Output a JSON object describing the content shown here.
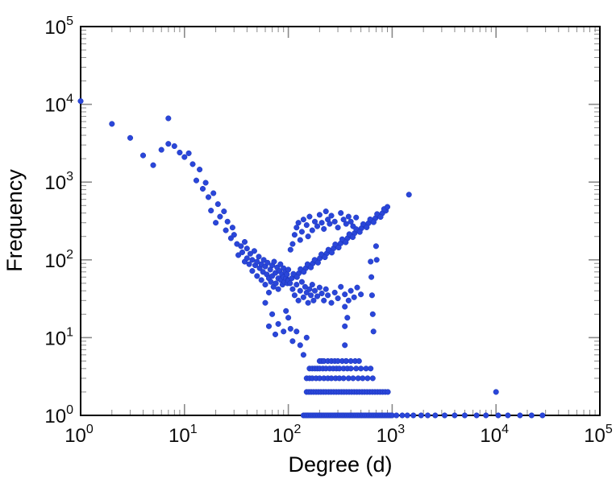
{
  "figure": {
    "background": "#ffffff"
  },
  "chart_data": {
    "type": "scatter",
    "title": "",
    "xlabel": "Degree (d)",
    "ylabel": "Frequency",
    "x_scale": "log",
    "y_scale": "log",
    "xlim": [
      1,
      100000
    ],
    "ylim": [
      1,
      100000
    ],
    "x_tick_exponents": [
      0,
      1,
      2,
      3,
      4,
      5
    ],
    "y_tick_exponents": [
      0,
      1,
      2,
      3,
      4,
      5
    ],
    "tick_base": "10",
    "grid": false,
    "legend": "none",
    "marker_color": "#2a46d9",
    "marker_edge_color": "#1b35b8",
    "tick_color": "#8a8a8a",
    "points": [
      [
        1,
        11000
      ],
      [
        2,
        5600
      ],
      [
        3,
        3700
      ],
      [
        4,
        2200
      ],
      [
        5,
        1650
      ],
      [
        6,
        2600
      ],
      [
        7,
        6600
      ],
      [
        7,
        3100
      ],
      [
        8,
        2900
      ],
      [
        9,
        2400
      ],
      [
        10,
        2100
      ],
      [
        11,
        2350
      ],
      [
        12,
        1700
      ],
      [
        13,
        1050
      ],
      [
        14,
        1450
      ],
      [
        15,
        820
      ],
      [
        16,
        980
      ],
      [
        17,
        640
      ],
      [
        18,
        430
      ],
      [
        19,
        720
      ],
      [
        20,
        300
      ],
      [
        21,
        520
      ],
      [
        22,
        360
      ],
      [
        24,
        420
      ],
      [
        25,
        240
      ],
      [
        26,
        310
      ],
      [
        28,
        190
      ],
      [
        29,
        260
      ],
      [
        30,
        210
      ],
      [
        32,
        160
      ],
      [
        33,
        115
      ],
      [
        35,
        150
      ],
      [
        36,
        125
      ],
      [
        38,
        95
      ],
      [
        38,
        170
      ],
      [
        40,
        140
      ],
      [
        40,
        105
      ],
      [
        42,
        88
      ],
      [
        43,
        120
      ],
      [
        45,
        100
      ],
      [
        45,
        72
      ],
      [
        47,
        130
      ],
      [
        48,
        85
      ],
      [
        50,
        95
      ],
      [
        50,
        62
      ],
      [
        52,
        110
      ],
      [
        53,
        78
      ],
      [
        55,
        88
      ],
      [
        55,
        55
      ],
      [
        57,
        70
      ],
      [
        58,
        100
      ],
      [
        60,
        82
      ],
      [
        60,
        48
      ],
      [
        62,
        65
      ],
      [
        63,
        92
      ],
      [
        65,
        58
      ],
      [
        65,
        38
      ],
      [
        67,
        75
      ],
      [
        68,
        52
      ],
      [
        70,
        85
      ],
      [
        70,
        62
      ],
      [
        72,
        45
      ],
      [
        73,
        95
      ],
      [
        75,
        68
      ],
      [
        76,
        50
      ],
      [
        78,
        80
      ],
      [
        80,
        58
      ],
      [
        80,
        42
      ],
      [
        82,
        72
      ],
      [
        84,
        88
      ],
      [
        85,
        55
      ],
      [
        87,
        65
      ],
      [
        88,
        48
      ],
      [
        90,
        78
      ],
      [
        90,
        60
      ],
      [
        92,
        52
      ],
      [
        94,
        70
      ],
      [
        95,
        58
      ],
      [
        97,
        65
      ],
      [
        98,
        50
      ],
      [
        100,
        75
      ],
      [
        100,
        55
      ],
      [
        60,
        28
      ],
      [
        65,
        14
      ],
      [
        70,
        20
      ],
      [
        75,
        11
      ],
      [
        80,
        15
      ],
      [
        90,
        12
      ],
      [
        95,
        22
      ],
      [
        100,
        18
      ],
      [
        105,
        13
      ],
      [
        110,
        9
      ],
      [
        120,
        12
      ],
      [
        130,
        8
      ],
      [
        140,
        6
      ],
      [
        150,
        10
      ],
      [
        105,
        135
      ],
      [
        110,
        160
      ],
      [
        115,
        210
      ],
      [
        120,
        260
      ],
      [
        125,
        300
      ],
      [
        130,
        180
      ],
      [
        135,
        230
      ],
      [
        140,
        330
      ],
      [
        150,
        280
      ],
      [
        155,
        200
      ],
      [
        160,
        360
      ],
      [
        170,
        240
      ],
      [
        180,
        310
      ],
      [
        190,
        270
      ],
      [
        200,
        380
      ],
      [
        210,
        300
      ],
      [
        220,
        250
      ],
      [
        230,
        420
      ],
      [
        240,
        330
      ],
      [
        250,
        290
      ],
      [
        260,
        370
      ],
      [
        280,
        310
      ],
      [
        300,
        260
      ],
      [
        320,
        400
      ],
      [
        340,
        330
      ],
      [
        360,
        290
      ],
      [
        380,
        360
      ],
      [
        400,
        310
      ],
      [
        420,
        270
      ],
      [
        450,
        350
      ],
      [
        100,
        54
      ],
      [
        108,
        58
      ],
      [
        117,
        63
      ],
      [
        126,
        67
      ],
      [
        136,
        72
      ],
      [
        147,
        78
      ],
      [
        159,
        84
      ],
      [
        172,
        90
      ],
      [
        186,
        97
      ],
      [
        201,
        105
      ],
      [
        217,
        113
      ],
      [
        234,
        121
      ],
      [
        253,
        131
      ],
      [
        273,
        141
      ],
      [
        295,
        152
      ],
      [
        319,
        163
      ],
      [
        344,
        176
      ],
      [
        372,
        190
      ],
      [
        402,
        204
      ],
      [
        434,
        220
      ],
      [
        469,
        237
      ],
      [
        506,
        255
      ],
      [
        547,
        275
      ],
      [
        591,
        296
      ],
      [
        638,
        319
      ],
      [
        689,
        343
      ],
      [
        744,
        370
      ],
      [
        804,
        398
      ],
      [
        868,
        429
      ],
      [
        104,
        50
      ],
      [
        112,
        66
      ],
      [
        121,
        60
      ],
      [
        131,
        76
      ],
      [
        141,
        70
      ],
      [
        153,
        88
      ],
      [
        165,
        80
      ],
      [
        179,
        100
      ],
      [
        193,
        92
      ],
      [
        208,
        118
      ],
      [
        225,
        108
      ],
      [
        243,
        135
      ],
      [
        262,
        124
      ],
      [
        283,
        158
      ],
      [
        305,
        144
      ],
      [
        330,
        184
      ],
      [
        357,
        168
      ],
      [
        386,
        214
      ],
      [
        417,
        196
      ],
      [
        451,
        248
      ],
      [
        487,
        228
      ],
      [
        526,
        288
      ],
      [
        568,
        262
      ],
      [
        614,
        332
      ],
      [
        663,
        305
      ],
      [
        716,
        388
      ],
      [
        773,
        356
      ],
      [
        835,
        450
      ],
      [
        900,
        480
      ],
      [
        1450,
        690
      ],
      [
        10000,
        2
      ],
      [
        110,
        42
      ],
      [
        115,
        35
      ],
      [
        120,
        48
      ],
      [
        125,
        30
      ],
      [
        130,
        40
      ],
      [
        135,
        52
      ],
      [
        140,
        33
      ],
      [
        145,
        45
      ],
      [
        150,
        38
      ],
      [
        155,
        28
      ],
      [
        160,
        42
      ],
      [
        165,
        35
      ],
      [
        170,
        48
      ],
      [
        175,
        30
      ],
      [
        180,
        40
      ],
      [
        190,
        34
      ],
      [
        200,
        44
      ],
      [
        210,
        37
      ],
      [
        220,
        30
      ],
      [
        230,
        42
      ],
      [
        240,
        35
      ],
      [
        260,
        28
      ],
      [
        280,
        38
      ],
      [
        300,
        32
      ],
      [
        320,
        45
      ],
      [
        350,
        36
      ],
      [
        380,
        30
      ],
      [
        400,
        40
      ],
      [
        430,
        33
      ],
      [
        460,
        44
      ],
      [
        500,
        36
      ],
      [
        350,
        25
      ],
      [
        350,
        14
      ],
      [
        350,
        8
      ],
      [
        360,
        5
      ],
      [
        370,
        18
      ],
      [
        620,
        95
      ],
      [
        630,
        60
      ],
      [
        640,
        35
      ],
      [
        650,
        20
      ],
      [
        660,
        12
      ],
      [
        700,
        150
      ],
      [
        710,
        100
      ],
      [
        200,
        5
      ],
      [
        210,
        5
      ],
      [
        220,
        5
      ],
      [
        240,
        5
      ],
      [
        260,
        5
      ],
      [
        280,
        5
      ],
      [
        300,
        5
      ],
      [
        330,
        5
      ],
      [
        360,
        5
      ],
      [
        400,
        5
      ],
      [
        440,
        5
      ],
      [
        480,
        5
      ],
      [
        160,
        4
      ],
      [
        170,
        4
      ],
      [
        180,
        4
      ],
      [
        190,
        4
      ],
      [
        200,
        4
      ],
      [
        215,
        4
      ],
      [
        230,
        4
      ],
      [
        250,
        4
      ],
      [
        270,
        4
      ],
      [
        290,
        4
      ],
      [
        310,
        4
      ],
      [
        340,
        4
      ],
      [
        370,
        4
      ],
      [
        400,
        4
      ],
      [
        450,
        4
      ],
      [
        500,
        4
      ],
      [
        560,
        4
      ],
      [
        620,
        4
      ],
      [
        150,
        3
      ],
      [
        160,
        3
      ],
      [
        170,
        3
      ],
      [
        185,
        3
      ],
      [
        200,
        3
      ],
      [
        220,
        3
      ],
      [
        240,
        3
      ],
      [
        260,
        3
      ],
      [
        285,
        3
      ],
      [
        310,
        3
      ],
      [
        340,
        3
      ],
      [
        380,
        3
      ],
      [
        420,
        3
      ],
      [
        470,
        3
      ],
      [
        520,
        3
      ],
      [
        580,
        3
      ],
      [
        650,
        3
      ],
      [
        150,
        2
      ],
      [
        158,
        2
      ],
      [
        166,
        2
      ],
      [
        175,
        2
      ],
      [
        185,
        2
      ],
      [
        195,
        2
      ],
      [
        206,
        2
      ],
      [
        218,
        2
      ],
      [
        230,
        2
      ],
      [
        244,
        2
      ],
      [
        258,
        2
      ],
      [
        273,
        2
      ],
      [
        289,
        2
      ],
      [
        306,
        2
      ],
      [
        324,
        2
      ],
      [
        343,
        2
      ],
      [
        363,
        2
      ],
      [
        384,
        2
      ],
      [
        407,
        2
      ],
      [
        431,
        2
      ],
      [
        456,
        2
      ],
      [
        483,
        2
      ],
      [
        512,
        2
      ],
      [
        542,
        2
      ],
      [
        574,
        2
      ],
      [
        608,
        2
      ],
      [
        644,
        2
      ],
      [
        682,
        2
      ],
      [
        722,
        2
      ],
      [
        765,
        2
      ],
      [
        810,
        2
      ],
      [
        858,
        2
      ],
      [
        909,
        2
      ],
      [
        140,
        1
      ],
      [
        146,
        1
      ],
      [
        152,
        1
      ],
      [
        158,
        1
      ],
      [
        165,
        1
      ],
      [
        172,
        1
      ],
      [
        179,
        1
      ],
      [
        186,
        1
      ],
      [
        194,
        1
      ],
      [
        202,
        1
      ],
      [
        210,
        1
      ],
      [
        219,
        1
      ],
      [
        228,
        1
      ],
      [
        237,
        1
      ],
      [
        247,
        1
      ],
      [
        257,
        1
      ],
      [
        268,
        1
      ],
      [
        279,
        1
      ],
      [
        290,
        1
      ],
      [
        302,
        1
      ],
      [
        314,
        1
      ],
      [
        327,
        1
      ],
      [
        340,
        1
      ],
      [
        354,
        1
      ],
      [
        369,
        1
      ],
      [
        384,
        1
      ],
      [
        400,
        1
      ],
      [
        416,
        1
      ],
      [
        433,
        1
      ],
      [
        451,
        1
      ],
      [
        469,
        1
      ],
      [
        488,
        1
      ],
      [
        508,
        1
      ],
      [
        529,
        1
      ],
      [
        550,
        1
      ],
      [
        573,
        1
      ],
      [
        596,
        1
      ],
      [
        620,
        1
      ],
      [
        645,
        1
      ],
      [
        671,
        1
      ],
      [
        698,
        1
      ],
      [
        727,
        1
      ],
      [
        756,
        1
      ],
      [
        787,
        1
      ],
      [
        819,
        1
      ],
      [
        852,
        1
      ],
      [
        887,
        1
      ],
      [
        923,
        1
      ],
      [
        960,
        1
      ],
      [
        999,
        1
      ],
      [
        1100,
        1
      ],
      [
        1250,
        1
      ],
      [
        1400,
        1
      ],
      [
        1600,
        1
      ],
      [
        1900,
        1
      ],
      [
        2200,
        1
      ],
      [
        2600,
        1
      ],
      [
        3200,
        1
      ],
      [
        4000,
        1
      ],
      [
        5000,
        1
      ],
      [
        6500,
        1
      ],
      [
        8000,
        1
      ],
      [
        10500,
        1
      ],
      [
        13000,
        1
      ],
      [
        17000,
        1
      ],
      [
        22000,
        1
      ],
      [
        28000,
        1
      ]
    ]
  }
}
